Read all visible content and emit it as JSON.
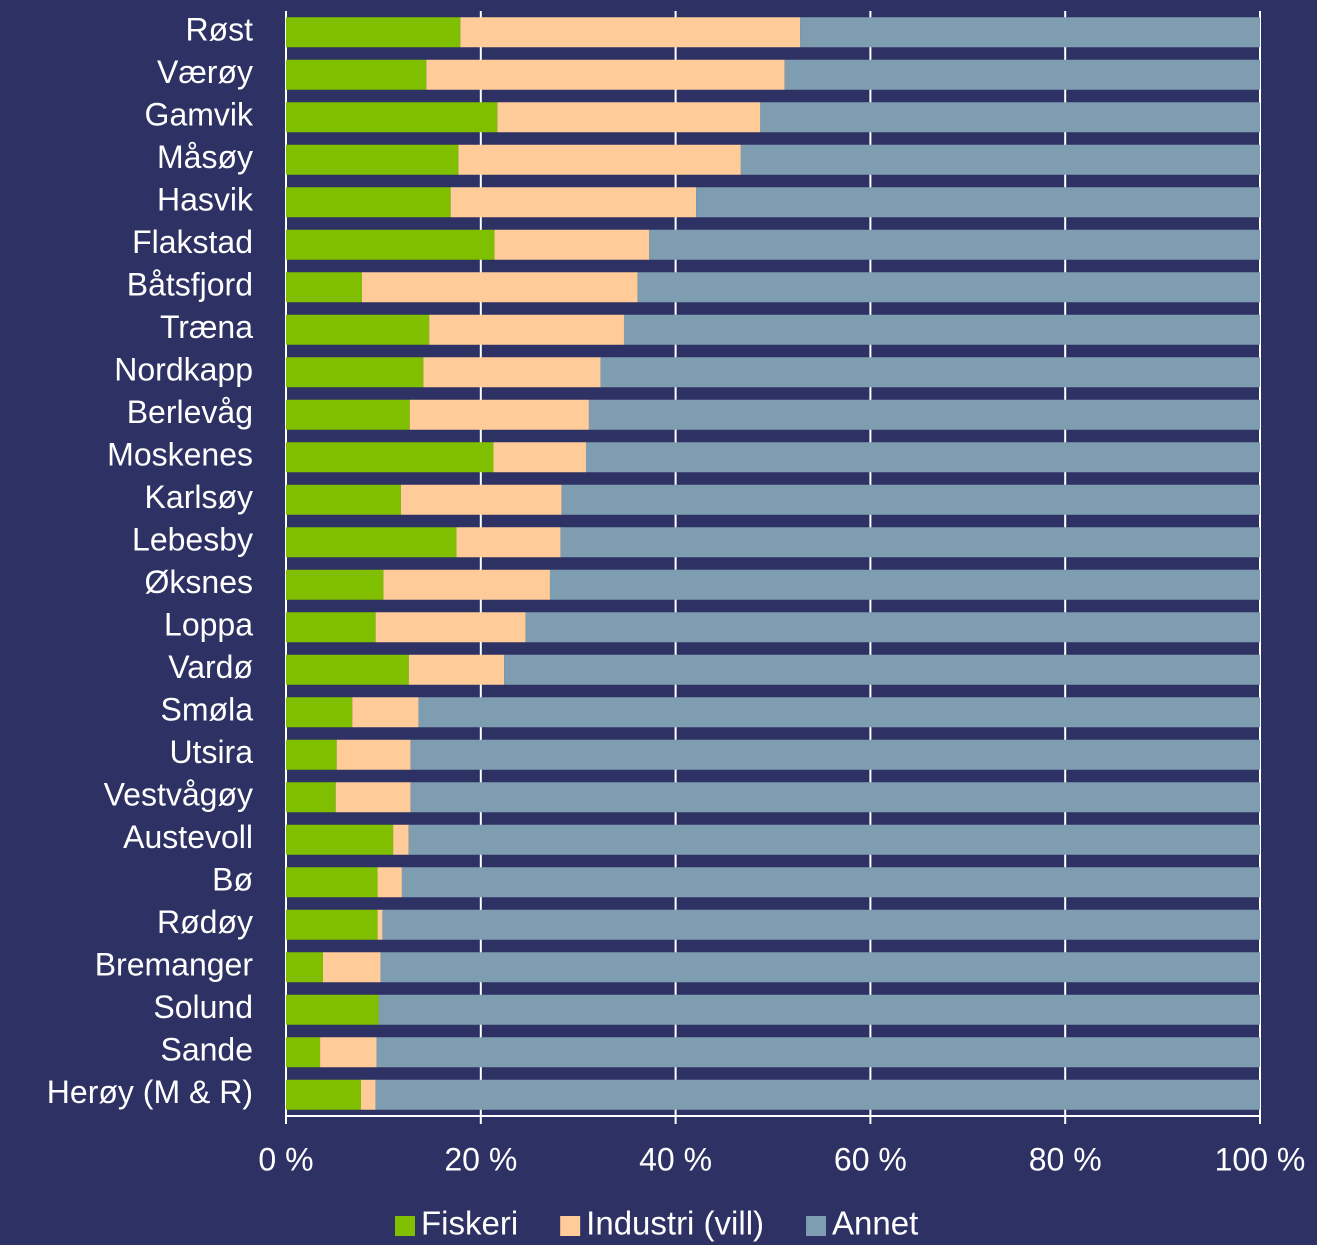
{
  "chart_data": {
    "type": "stacked_bar_horizontal",
    "categories": [
      "Røst",
      "Værøy",
      "Gamvik",
      "Måsøy",
      "Hasvik",
      "Flakstad",
      "Båtsfjord",
      "Træna",
      "Nordkapp",
      "Berlevåg",
      "Moskenes",
      "Karlsøy",
      "Lebesby",
      "Øksnes",
      "Loppa",
      "Vardø",
      "Smøla",
      "Utsira",
      "Vestvågøy",
      "Austevoll",
      "Bø",
      "Rødøy",
      "Bremanger",
      "Solund",
      "Sande",
      "Herøy (M & R)"
    ],
    "series": [
      {
        "name": "Fiskeri",
        "color": "#7fbf00",
        "values": [
          17.9,
          14.4,
          21.7,
          17.7,
          16.9,
          21.4,
          7.8,
          14.7,
          14.1,
          12.7,
          21.3,
          11.8,
          17.5,
          10.0,
          9.2,
          12.6,
          6.8,
          5.2,
          5.1,
          11.0,
          9.4,
          9.4,
          3.8,
          9.5,
          3.5,
          7.7
        ]
      },
      {
        "name": "Industri (vill)",
        "color": "#ffcc99",
        "values": [
          34.9,
          36.8,
          27.0,
          29.0,
          25.2,
          15.9,
          28.3,
          20.0,
          18.2,
          18.4,
          9.5,
          16.5,
          10.7,
          17.1,
          15.4,
          9.8,
          6.8,
          7.6,
          7.7,
          1.6,
          2.5,
          0.5,
          5.9,
          0,
          5.8,
          1.5
        ]
      },
      {
        "name": "Annet",
        "color": "#7f9db0",
        "values": [
          47.2,
          48.8,
          51.3,
          53.3,
          57.9,
          62.7,
          63.9,
          65.3,
          67.7,
          68.9,
          69.2,
          71.7,
          71.8,
          72.9,
          75.4,
          77.6,
          86.4,
          87.2,
          87.2,
          87.4,
          88.1,
          90.1,
          90.3,
          90.5,
          90.7,
          90.8
        ]
      }
    ],
    "xlim": [
      0,
      100
    ],
    "xticks": [
      {
        "value": 0,
        "label": "0 %"
      },
      {
        "value": 20,
        "label": "20 %"
      },
      {
        "value": 40,
        "label": "40 %"
      },
      {
        "value": 60,
        "label": "60 %"
      },
      {
        "value": 80,
        "label": "80 %"
      },
      {
        "value": 100,
        "label": "100 %"
      }
    ],
    "grid": true,
    "legend": "bottom"
  }
}
